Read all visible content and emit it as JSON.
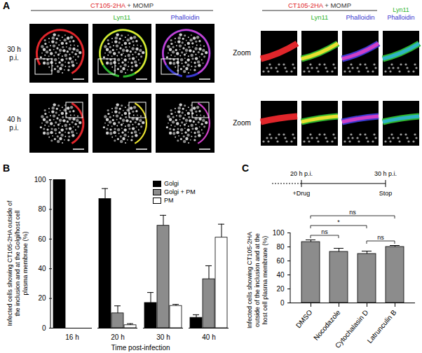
{
  "panel_a": {
    "panel_label": "A",
    "group_header": [
      "CT105-2HA",
      "+ MOMP"
    ],
    "column_headers": [
      "Lyn11",
      "Phalloidin"
    ],
    "zoom_last_header": [
      "Lyn11",
      "Phalloidin"
    ],
    "rows": [
      "30 h p.i.",
      "40 h p.i."
    ],
    "zoom_label": "Zoom",
    "colors": {
      "CT105-2HA": "#e0262b",
      "Lyn11": "#2fb52f",
      "Phalloidin": "#3a3ad0",
      "MOMP": "#333333"
    }
  },
  "chart_data": [
    {
      "type": "bar",
      "panel_label": "B",
      "x_label": "Time post-infection",
      "y_label": "Infected cells showing CT105-2HA outside of the inclusion and at the Golgi/host cell plasma membrane (%)",
      "categories": [
        "16 h",
        "20 h",
        "30 h",
        "40 h"
      ],
      "series": [
        {
          "name": "Golgi",
          "color": "#000000",
          "values": [
            100,
            87,
            17,
            7
          ],
          "errors": [
            0,
            7,
            7,
            2
          ]
        },
        {
          "name": "Golgi + PM",
          "color": "#8c8c8c",
          "values": [
            0,
            10,
            69,
            33
          ],
          "errors": [
            0,
            5,
            7,
            9
          ]
        },
        {
          "name": "PM",
          "color": "#ffffff",
          "values": [
            0,
            2,
            15,
            61
          ],
          "errors": [
            0,
            1,
            1,
            9
          ]
        }
      ],
      "ylim": [
        0,
        100
      ],
      "yticks": [
        0,
        20,
        40,
        60,
        80,
        100
      ],
      "legend": "top-right"
    },
    {
      "type": "bar",
      "panel_label": "C",
      "y_label": "Infected cells showing CT105-2HA outside of the inclusion and at the host cell plasma membrane (%)",
      "categories": [
        "DMSO",
        "Nocodazole",
        "Cytochalasin D",
        "Latrunculin B"
      ],
      "values": [
        87,
        73,
        70,
        80
      ],
      "errors": [
        3,
        5,
        4,
        2
      ],
      "color": "#8c8c8c",
      "ylim": [
        0,
        100
      ],
      "yticks": [
        0,
        20,
        40,
        60,
        80,
        100
      ],
      "comparisons": [
        {
          "from": "DMSO",
          "to": "Latrunculin B",
          "label": "ns"
        },
        {
          "from": "DMSO",
          "to": "Nocodazole",
          "label": "ns"
        },
        {
          "from": "DMSO",
          "to": "Cytochalasin D",
          "label": "*"
        },
        {
          "from": "Cytochalasin D",
          "to": "Latrunculin B",
          "label": "ns"
        }
      ],
      "timeline": {
        "start_label": "20 h p.i.",
        "end_label": "30 h p.i.",
        "start_event": "+Drug",
        "end_event": "Stop"
      }
    }
  ]
}
